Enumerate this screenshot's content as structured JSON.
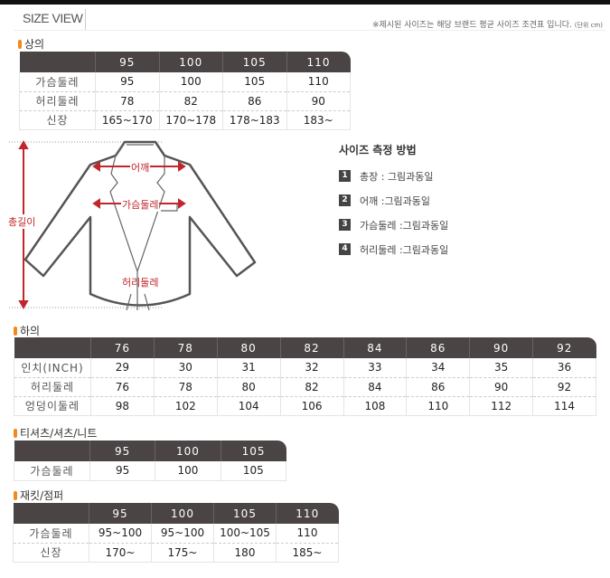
{
  "header": {
    "title": "SIZE VIEW",
    "note": "※제시된 사이즈는 해당 브랜드 평균 사이즈 조견표 입니다.",
    "unit": "(단위 cm)"
  },
  "tops": {
    "title": "상의",
    "columns": [
      "",
      "95",
      "100",
      "105",
      "110"
    ],
    "rows": [
      [
        "가슴둘레",
        "95",
        "100",
        "105",
        "110"
      ],
      [
        "허리둘레",
        "78",
        "82",
        "86",
        "90"
      ],
      [
        "신장",
        "165~170",
        "170~178",
        "178~183",
        "183~"
      ]
    ]
  },
  "diagram": {
    "labels": {
      "total": "총길이",
      "shoulder": "어깨",
      "chest": "가슴둘레",
      "waist": "허리둘레"
    },
    "color": "#c0262b"
  },
  "howto": {
    "title": "사이즈 측정 방법",
    "items": [
      {
        "num": "1",
        "text": "총장 : 그림과동일"
      },
      {
        "num": "2",
        "text": "어깨 :그림과동일"
      },
      {
        "num": "3",
        "text": "가슴둘레 :그림과동일"
      },
      {
        "num": "4",
        "text": "허리둘레 :그림과동일"
      }
    ]
  },
  "bottoms": {
    "title": "하의",
    "columns": [
      "",
      "76",
      "78",
      "80",
      "82",
      "84",
      "86",
      "90",
      "92"
    ],
    "rows": [
      [
        "인치(INCH)",
        "29",
        "30",
        "31",
        "32",
        "33",
        "34",
        "35",
        "36"
      ],
      [
        "허리둘레",
        "76",
        "78",
        "80",
        "82",
        "84",
        "86",
        "90",
        "92"
      ],
      [
        "엉덩이둘레",
        "98",
        "102",
        "104",
        "106",
        "108",
        "110",
        "112",
        "114"
      ]
    ]
  },
  "tshirts": {
    "title": "티셔츠/셔츠/니트",
    "columns": [
      "",
      "95",
      "100",
      "105"
    ],
    "rows": [
      [
        "가슴둘레",
        "95",
        "100",
        "105"
      ]
    ]
  },
  "jackets": {
    "title": "재킷/점퍼",
    "columns": [
      "",
      "95",
      "100",
      "105",
      "110"
    ],
    "rows": [
      [
        "가슴둘레",
        "95~100",
        "95~100",
        "100~105",
        "110"
      ],
      [
        "신장",
        "170~",
        "175~",
        "180",
        "185~"
      ]
    ]
  }
}
